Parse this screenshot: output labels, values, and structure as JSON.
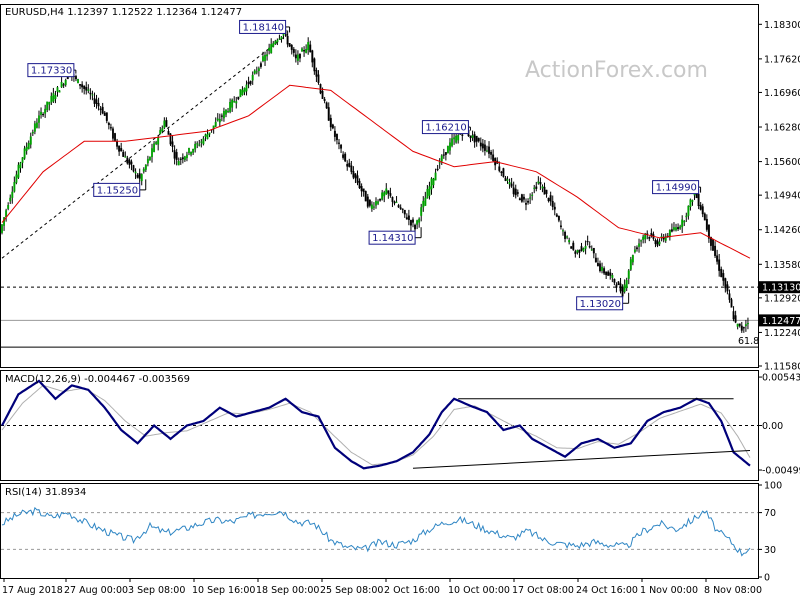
{
  "header": {
    "symbol_line": "EURUSD,H4  1.12397 1.12522 1.12364 1.12477",
    "macd_label": "MACD(12,26,9) -0.004467 -0.003569",
    "rsi_label": "RSI(14) 31.8934",
    "watermark": "ActionForex.com"
  },
  "chart_data": [
    {
      "type": "candlestick",
      "title": "EURUSD,H4  1.12397 1.12522 1.12364 1.12477",
      "ylim": [
        1.1158,
        1.1866
      ],
      "yticks": [
        "1.18300",
        "1.17620",
        "1.16960",
        "1.16280",
        "1.15600",
        "1.14940",
        "1.14260",
        "1.13580",
        "1.12920",
        "1.12240",
        "1.11580"
      ],
      "ytick_values": [
        1.183,
        1.1762,
        1.1696,
        1.1628,
        1.156,
        1.1494,
        1.1426,
        1.1358,
        1.1292,
        1.1224,
        1.1158
      ],
      "xticks": [
        "17 Aug 2018",
        "27 Aug 00:00",
        "3 Sep 08:00",
        "10 Sep 16:00",
        "18 Sep 00:00",
        "25 Sep 08:00",
        "2 Oct 16:00",
        "10 Oct 00:00",
        "17 Oct 08:00",
        "24 Oct 16:00",
        "1 Nov 00:00",
        "8 Nov 08:00"
      ],
      "price_path": [
        [
          0,
          1.142
        ],
        [
          4,
          1.148
        ],
        [
          10,
          1.156
        ],
        [
          18,
          1.164
        ],
        [
          26,
          1.169
        ],
        [
          34,
          1.1733
        ],
        [
          42,
          1.17
        ],
        [
          50,
          1.166
        ],
        [
          56,
          1.16
        ],
        [
          62,
          1.156
        ],
        [
          68,
          1.1525
        ],
        [
          74,
          1.158
        ],
        [
          80,
          1.164
        ],
        [
          86,
          1.156
        ],
        [
          92,
          1.158
        ],
        [
          98,
          1.16
        ],
        [
          106,
          1.164
        ],
        [
          114,
          1.168
        ],
        [
          122,
          1.172
        ],
        [
          128,
          1.176
        ],
        [
          134,
          1.18
        ],
        [
          138,
          1.1814
        ],
        [
          144,
          1.176
        ],
        [
          150,
          1.179
        ],
        [
          156,
          1.17
        ],
        [
          162,
          1.162
        ],
        [
          168,
          1.156
        ],
        [
          174,
          1.152
        ],
        [
          180,
          1.147
        ],
        [
          188,
          1.15
        ],
        [
          196,
          1.146
        ],
        [
          202,
          1.1431
        ],
        [
          208,
          1.15
        ],
        [
          214,
          1.156
        ],
        [
          220,
          1.16
        ],
        [
          226,
          1.1621
        ],
        [
          232,
          1.16
        ],
        [
          238,
          1.158
        ],
        [
          244,
          1.154
        ],
        [
          250,
          1.15
        ],
        [
          256,
          1.148
        ],
        [
          262,
          1.152
        ],
        [
          268,
          1.148
        ],
        [
          274,
          1.142
        ],
        [
          280,
          1.138
        ],
        [
          286,
          1.14
        ],
        [
          292,
          1.135
        ],
        [
          298,
          1.133
        ],
        [
          303,
          1.1302
        ],
        [
          308,
          1.138
        ],
        [
          314,
          1.142
        ],
        [
          320,
          1.14
        ],
        [
          326,
          1.142
        ],
        [
          332,
          1.144
        ],
        [
          338,
          1.1499
        ],
        [
          342,
          1.146
        ],
        [
          346,
          1.14
        ],
        [
          350,
          1.135
        ],
        [
          354,
          1.13
        ],
        [
          358,
          1.124
        ],
        [
          361,
          1.123
        ],
        [
          364,
          1.1248
        ]
      ],
      "ma_path": [
        [
          0,
          1.144
        ],
        [
          20,
          1.154
        ],
        [
          40,
          1.16
        ],
        [
          60,
          1.16
        ],
        [
          80,
          1.161
        ],
        [
          100,
          1.162
        ],
        [
          120,
          1.165
        ],
        [
          140,
          1.171
        ],
        [
          160,
          1.17
        ],
        [
          180,
          1.164
        ],
        [
          200,
          1.158
        ],
        [
          220,
          1.155
        ],
        [
          240,
          1.156
        ],
        [
          260,
          1.154
        ],
        [
          280,
          1.149
        ],
        [
          300,
          1.143
        ],
        [
          320,
          1.141
        ],
        [
          340,
          1.142
        ],
        [
          364,
          1.137
        ]
      ],
      "callouts": [
        {
          "label": "1.17330",
          "price": 1.1733,
          "bar": 34
        },
        {
          "label": "1.18140",
          "price": 1.1814,
          "bar": 138
        },
        {
          "label": "1.15250",
          "price": 1.1525,
          "bar": 68
        },
        {
          "label": "1.16210",
          "price": 1.1621,
          "bar": 226
        },
        {
          "label": "1.14310",
          "price": 1.1431,
          "bar": 202
        },
        {
          "label": "1.14990",
          "price": 1.1499,
          "bar": 338
        },
        {
          "label": "1.13020",
          "price": 1.1302,
          "bar": 303
        }
      ],
      "horizontal_levels": [
        {
          "label": "1.13130",
          "price": 1.1313,
          "style": "dashed"
        },
        {
          "label": "1.12477",
          "price": 1.12477,
          "style": "solid"
        }
      ],
      "fib_label": "61.8",
      "fib_level": 1.1195,
      "trendline": {
        "from": [
          0,
          1.137
        ],
        "to": [
          140,
          1.1814
        ]
      }
    },
    {
      "type": "line",
      "title": "MACD(12,26,9) -0.004467 -0.003569",
      "ylim": [
        -0.006,
        0.006
      ],
      "yticks": [
        "0.005432",
        "0.00",
        "-0.004993"
      ],
      "ytick_values": [
        0.005432,
        0.0,
        -0.004993
      ],
      "series": [
        {
          "values": [
            [
              0,
              0.0
            ],
            [
              8,
              0.0035
            ],
            [
              18,
              0.005
            ],
            [
              26,
              0.003
            ],
            [
              34,
              0.0045
            ],
            [
              42,
              0.004
            ],
            [
              50,
              0.002
            ],
            [
              58,
              -0.0005
            ],
            [
              66,
              -0.002
            ],
            [
              74,
              0.0
            ],
            [
              82,
              -0.0015
            ],
            [
              90,
              0.0
            ],
            [
              98,
              0.0005
            ],
            [
              106,
              0.002
            ],
            [
              114,
              0.001
            ],
            [
              122,
              0.0015
            ],
            [
              130,
              0.002
            ],
            [
              138,
              0.003
            ],
            [
              146,
              0.0015
            ],
            [
              154,
              0.001
            ],
            [
              162,
              -0.0025
            ],
            [
              170,
              -0.004
            ],
            [
              176,
              -0.0048
            ],
            [
              184,
              -0.0045
            ],
            [
              192,
              -0.004
            ],
            [
              200,
              -0.003
            ],
            [
              208,
              -0.001
            ],
            [
              214,
              0.0015
            ],
            [
              220,
              0.003
            ],
            [
              228,
              0.0022
            ],
            [
              236,
              0.0015
            ],
            [
              244,
              -0.0005
            ],
            [
              252,
              0.0
            ],
            [
              258,
              -0.0015
            ],
            [
              266,
              -0.0025
            ],
            [
              274,
              -0.0035
            ],
            [
              282,
              -0.002
            ],
            [
              290,
              -0.0015
            ],
            [
              298,
              -0.0025
            ],
            [
              306,
              -0.002
            ],
            [
              314,
              0.0005
            ],
            [
              322,
              0.0015
            ],
            [
              330,
              0.002
            ],
            [
              338,
              0.003
            ],
            [
              344,
              0.0025
            ],
            [
              350,
              0.0005
            ],
            [
              356,
              -0.003
            ],
            [
              364,
              -0.0045
            ]
          ]
        },
        {
          "values": [
            [
              0,
              -0.0005
            ],
            [
              10,
              0.0025
            ],
            [
              20,
              0.0045
            ],
            [
              30,
              0.0038
            ],
            [
              40,
              0.0042
            ],
            [
              50,
              0.0028
            ],
            [
              60,
              0.0005
            ],
            [
              70,
              -0.0012
            ],
            [
              80,
              -0.0008
            ],
            [
              90,
              -0.0006
            ],
            [
              100,
              0.0004
            ],
            [
              110,
              0.0014
            ],
            [
              120,
              0.0013
            ],
            [
              130,
              0.0018
            ],
            [
              140,
              0.0025
            ],
            [
              150,
              0.0015
            ],
            [
              160,
              -0.0008
            ],
            [
              170,
              -0.003
            ],
            [
              180,
              -0.0044
            ],
            [
              190,
              -0.0042
            ],
            [
              200,
              -0.0033
            ],
            [
              210,
              -0.0012
            ],
            [
              220,
              0.0018
            ],
            [
              230,
              0.0022
            ],
            [
              240,
              0.001
            ],
            [
              250,
              -0.0002
            ],
            [
              260,
              -0.0012
            ],
            [
              270,
              -0.0025
            ],
            [
              280,
              -0.0026
            ],
            [
              290,
              -0.0018
            ],
            [
              300,
              -0.0021
            ],
            [
              310,
              -0.0008
            ],
            [
              320,
              0.0008
            ],
            [
              330,
              0.0016
            ],
            [
              340,
              0.0024
            ],
            [
              350,
              0.0014
            ],
            [
              358,
              -0.0012
            ],
            [
              364,
              -0.0036
            ]
          ]
        }
      ],
      "trendlines": [
        {
          "from": [
            222,
            0.003
          ],
          "to": [
            356,
            0.003
          ]
        },
        {
          "from": [
            200,
            -0.0048
          ],
          "to": [
            364,
            -0.0028
          ]
        }
      ]
    },
    {
      "type": "line",
      "title": "RSI(14) 31.8934",
      "ylim": [
        0,
        100
      ],
      "yticks": [
        "100",
        "70",
        "30",
        "0"
      ],
      "ytick_values": [
        100,
        70,
        30,
        0
      ],
      "series": [
        {
          "values": [
            [
              0,
              58
            ],
            [
              8,
              68
            ],
            [
              16,
              72
            ],
            [
              24,
              65
            ],
            [
              32,
              70
            ],
            [
              40,
              60
            ],
            [
              48,
              52
            ],
            [
              56,
              45
            ],
            [
              64,
              40
            ],
            [
              72,
              55
            ],
            [
              80,
              48
            ],
            [
              88,
              52
            ],
            [
              96,
              58
            ],
            [
              104,
              62
            ],
            [
              112,
              60
            ],
            [
              120,
              66
            ],
            [
              128,
              70
            ],
            [
              136,
              72
            ],
            [
              144,
              60
            ],
            [
              152,
              58
            ],
            [
              160,
              40
            ],
            [
              168,
              32
            ],
            [
              176,
              30
            ],
            [
              184,
              38
            ],
            [
              192,
              35
            ],
            [
              200,
              40
            ],
            [
              208,
              52
            ],
            [
              216,
              60
            ],
            [
              224,
              62
            ],
            [
              232,
              55
            ],
            [
              240,
              48
            ],
            [
              248,
              42
            ],
            [
              256,
              50
            ],
            [
              264,
              40
            ],
            [
              272,
              36
            ],
            [
              280,
              34
            ],
            [
              288,
              38
            ],
            [
              296,
              35
            ],
            [
              304,
              33
            ],
            [
              312,
              50
            ],
            [
              320,
              58
            ],
            [
              328,
              52
            ],
            [
              336,
              62
            ],
            [
              342,
              72
            ],
            [
              348,
              50
            ],
            [
              354,
              40
            ],
            [
              360,
              26
            ],
            [
              364,
              32
            ]
          ]
        }
      ]
    }
  ]
}
